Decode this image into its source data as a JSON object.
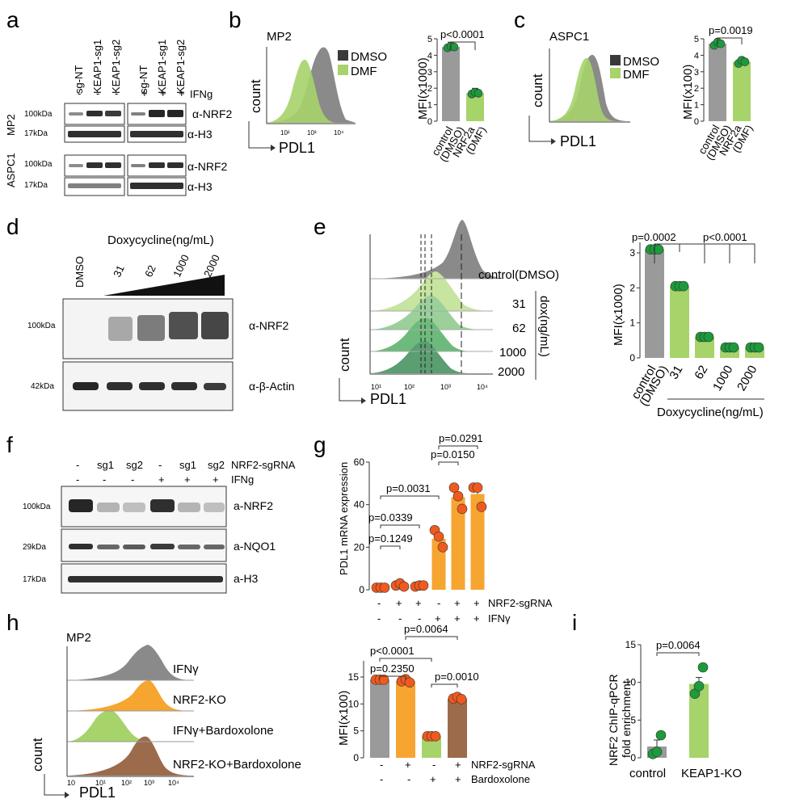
{
  "panel_letters": {
    "a": "a",
    "b": "b",
    "c": "c",
    "d": "d",
    "e": "e",
    "f": "f",
    "g": "g",
    "h": "h",
    "i": "i"
  },
  "colors": {
    "gray": "#9a9a9a",
    "dark_gray": "#6d6d6d",
    "light_green": "#a6d36a",
    "green_dot": "#1d9a3b",
    "orange": "#f6a531",
    "orange_dot": "#f05a1e",
    "brown": "#9c6b4c",
    "blot_band": "#1a1a1a"
  },
  "panel_a": {
    "lanes": [
      "sg-NT",
      "KEAP1-sg1",
      "KEAP1-sg2",
      "sg-NT",
      "KEAP1-sg1",
      "KEAP1-sg2"
    ],
    "ifng_marks": [
      "-",
      "-",
      "-",
      "+",
      "+",
      "+"
    ],
    "ifng_label": "IFNg",
    "cells": [
      "MP2",
      "ASPC1"
    ],
    "mw": [
      "100kDa",
      "17kDa",
      "100kDa",
      "17kDa"
    ],
    "antibodies": [
      "α-NRF2",
      "α-H3",
      "α-NRF2",
      "α-H3"
    ]
  },
  "panel_b": {
    "cell": "MP2",
    "legend": [
      "DMSO",
      "DMF"
    ],
    "ylabel": "count",
    "xlabel": "PDL1",
    "xticks": [
      "10²",
      "10³",
      "10⁴"
    ],
    "bar_ylabel": "MFI(x1000)",
    "bar_yticks": [
      "0",
      "1",
      "2",
      "3",
      "4",
      "5"
    ],
    "pvalue": "p<0.0001",
    "categories": [
      "control (DMSO)",
      "NRF2a (DMF)"
    ],
    "cat_lines": [
      [
        "control",
        "(DMSO)"
      ],
      [
        "NRF2a",
        "(DMF)"
      ]
    ]
  },
  "panel_c": {
    "cell": "ASPC1",
    "legend": [
      "DMSO",
      "DMF"
    ],
    "ylabel": "count",
    "xlabel": "PDL1",
    "bar_ylabel": "MFI(x100)",
    "bar_yticks": [
      "0",
      "1",
      "2",
      "3",
      "4",
      "5"
    ],
    "pvalue": "p=0.0019",
    "categories": [
      "control (DMSO)",
      "NRF2a (DMF)"
    ],
    "cat_lines": [
      [
        "control",
        "(DMSO)"
      ],
      [
        "NRF2a",
        "(DMF)"
      ]
    ]
  },
  "panel_d": {
    "title": "Doxycycline(ng/mL)",
    "dmso": "DMSO",
    "doses": [
      "31",
      "62",
      "1000",
      "2000"
    ],
    "mw": [
      "100kDa",
      "42kDa"
    ],
    "antibodies": [
      "α-NRF2",
      "α-β-Actin"
    ]
  },
  "panel_e": {
    "hist_labels": [
      "control(DMSO)",
      "31",
      "62",
      "1000",
      "2000"
    ],
    "dox_label": "dox(ng/mL)",
    "ylabel": "count",
    "xlabel": "PDL1",
    "xticks": [
      "10¹",
      "10²",
      "10³",
      "10⁴"
    ],
    "bar_ylabel": "MFI(x1000)",
    "bar_yticks": [
      "0",
      "1",
      "2",
      "3"
    ],
    "pvalues": [
      "p=0.0002",
      "p<0.0001"
    ],
    "categories": [
      "control (DMSO)",
      "31",
      "62",
      "1000",
      "2000"
    ],
    "control_lines": [
      "control",
      "(DMSO)"
    ],
    "xgroup_label": "Doxycycline(ng/mL)"
  },
  "panel_f": {
    "sg_marks": [
      "-",
      "sg1",
      "sg2",
      "-",
      "sg1",
      "sg2"
    ],
    "ifng_marks": [
      "-",
      "-",
      "-",
      "+",
      "+",
      "+"
    ],
    "row_labels": [
      "NRF2-sgRNA",
      "IFNg"
    ],
    "mw": [
      "100kDa",
      "29kDa",
      "17kDa"
    ],
    "antibodies": [
      "a-NRF2",
      "a-NQO1",
      "a-H3"
    ]
  },
  "panel_g": {
    "ylabel": "PDL1 mRNA expression",
    "yticks": [
      "0",
      "20",
      "40",
      "60"
    ],
    "pvalues": [
      "p=0.1249",
      "p=0.0339",
      "p=0.0031",
      "p=0.0150",
      "p=0.0291"
    ],
    "sg_marks": [
      "-",
      "+",
      "+",
      "-",
      "+",
      "+"
    ],
    "ifn_marks": [
      "-",
      "-",
      "-",
      "+",
      "+",
      "+"
    ],
    "row_labels": [
      "NRF2-sgRNA",
      "IFNγ"
    ]
  },
  "panel_h": {
    "cell": "MP2",
    "hist_labels": [
      "IFNγ",
      "NRF2-KO",
      "IFNγ+Bardoxolone",
      "NRF2-KO+Bardoxolone"
    ],
    "ylabel": "count",
    "xlabel": "PDL1",
    "xticks": [
      "10",
      "10¹",
      "10²",
      "10³",
      "10⁴"
    ],
    "bar_ylabel": "MFI(x100)",
    "bar_yticks": [
      "0",
      "5",
      "10",
      "15"
    ],
    "pvalues": [
      "p=0.2350",
      "p<0.0001",
      "p=0.0064",
      "p=0.0010"
    ],
    "sg_marks": [
      "-",
      "+",
      "-",
      "+"
    ],
    "bard_marks": [
      "-",
      "-",
      "+",
      "+"
    ],
    "row_labels": [
      "NRF2-sgRNA",
      "Bardoxolone"
    ]
  },
  "panel_i": {
    "ylabel_lines": [
      "NRF2 ChIP-qPCR",
      "fold enrichment"
    ],
    "yticks": [
      "0",
      "5",
      "10",
      "15"
    ],
    "pvalue": "p=0.0064",
    "categories": [
      "control",
      "KEAP1-KO"
    ]
  },
  "chart_data": [
    {
      "type": "bar",
      "panel": "b",
      "ylabel": "MFI(x1000)",
      "ylim": [
        0,
        5
      ],
      "categories": [
        "control (DMSO)",
        "NRF2a (DMF)"
      ],
      "values": [
        4.5,
        1.7
      ],
      "points": [
        [
          4.45,
          4.55,
          4.5
        ],
        [
          1.65,
          1.75,
          1.7
        ]
      ]
    },
    {
      "type": "bar",
      "panel": "c",
      "ylabel": "MFI(x100)",
      "ylim": [
        0,
        5
      ],
      "categories": [
        "control (DMSO)",
        "NRF2a (DMF)"
      ],
      "values": [
        4.7,
        3.6
      ],
      "points": [
        [
          4.6,
          4.8,
          4.7
        ],
        [
          3.5,
          3.7,
          3.6
        ]
      ]
    },
    {
      "type": "bar",
      "panel": "e",
      "ylabel": "MFI(x1000)",
      "ylim": [
        0,
        3.3
      ],
      "categories": [
        "control (DMSO)",
        "31",
        "62",
        "1000",
        "2000"
      ],
      "values": [
        3.1,
        2.05,
        0.6,
        0.3,
        0.3
      ],
      "points": [
        [
          3.1,
          3.1,
          3.1
        ],
        [
          2.05,
          2.05,
          2.05
        ],
        [
          0.6,
          0.6,
          0.6
        ],
        [
          0.3,
          0.3,
          0.3
        ],
        [
          0.3,
          0.3,
          0.3
        ]
      ]
    },
    {
      "type": "bar",
      "panel": "g",
      "ylabel": "PDL1 mRNA expression",
      "ylim": [
        0,
        60
      ],
      "categories": [
        "1",
        "2",
        "3",
        "4",
        "5",
        "6"
      ],
      "values": [
        1,
        2,
        2,
        24,
        43.5,
        45
      ],
      "points": [
        [
          1,
          1,
          1
        ],
        [
          2,
          3,
          1.5
        ],
        [
          1.5,
          2,
          2
        ],
        [
          28,
          25,
          20
        ],
        [
          48,
          44,
          38
        ],
        [
          48,
          48,
          39
        ]
      ]
    },
    {
      "type": "bar",
      "panel": "h",
      "ylabel": "MFI(x100)",
      "ylim": [
        0,
        18
      ],
      "categories": [
        "1",
        "2",
        "3",
        "4"
      ],
      "values": [
        14.5,
        14.2,
        4,
        11
      ],
      "points": [
        [
          14.5,
          14.5,
          14.5
        ],
        [
          14.2,
          14.6,
          14
        ],
        [
          4,
          4,
          4
        ],
        [
          11,
          11.3,
          10.9
        ]
      ]
    },
    {
      "type": "bar",
      "panel": "i",
      "ylabel": "NRF2 ChIP-qPCR fold enrichment",
      "ylim": [
        0,
        15
      ],
      "categories": [
        "control",
        "KEAP1-KO"
      ],
      "values": [
        1.5,
        9.8
      ],
      "points": [
        [
          0.5,
          0.8,
          3
        ],
        [
          8.5,
          9.5,
          12
        ]
      ]
    }
  ]
}
